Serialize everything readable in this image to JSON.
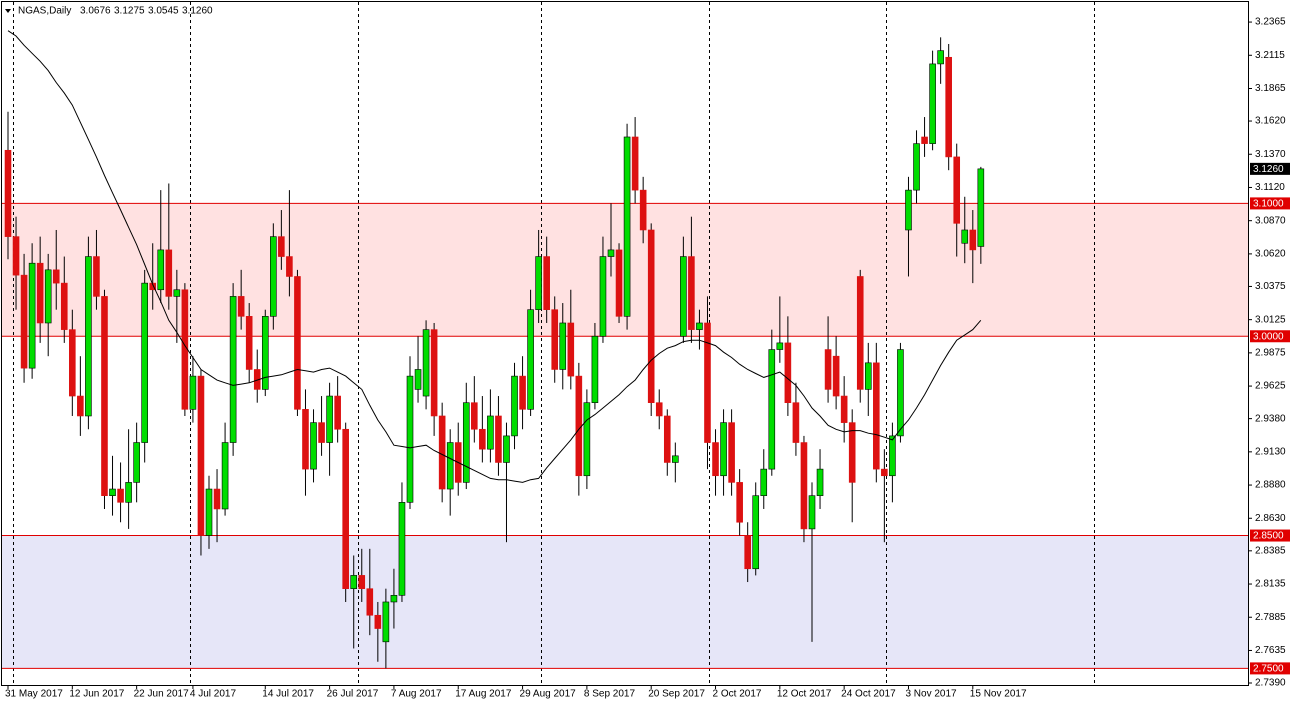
{
  "chart_data": {
    "type": "candlestick",
    "title": "NGAS,Daily",
    "header_values": [
      "3.0676",
      "3.1275",
      "3.0545",
      "3.1260"
    ],
    "up_color": "#00dd00",
    "down_color": "#dd1111",
    "level_color": "#e00000",
    "ma_color": "#000000",
    "ylim": [
      2.7375,
      3.2516
    ],
    "yticks": [
      3.2365,
      3.2115,
      3.1865,
      {
        "value": 3.162,
        "label": "3.1620"
      },
      {
        "value": 3.137,
        "label": "3.1370"
      },
      {
        "value": 3.112,
        "label": "3.1120"
      },
      {
        "value": 3.087,
        "label": "3.0870"
      },
      {
        "value": 3.062,
        "label": "3.0620"
      },
      3.0375,
      3.0125,
      2.9875,
      2.9625,
      {
        "value": 2.938,
        "label": "2.9380"
      },
      {
        "value": 2.913,
        "label": "2.9130"
      },
      {
        "value": 2.888,
        "label": "2.8880"
      },
      {
        "value": 2.863,
        "label": "2.8630"
      },
      2.8385,
      2.8135,
      2.7885,
      2.7635,
      {
        "value": 2.739,
        "label": "2.7390"
      }
    ],
    "xticks": [
      {
        "value": 0,
        "label": "31 May 2017"
      },
      {
        "value": 8,
        "label": "12 Jun 2017"
      },
      {
        "value": 16,
        "label": "22 Jun 2017"
      },
      {
        "value": 23,
        "label": "4 Jul 2017"
      },
      {
        "value": 32,
        "label": "14 Jul 2017"
      },
      {
        "value": 40,
        "label": "26 Jul 2017"
      },
      {
        "value": 48,
        "label": "7 Aug 2017"
      },
      {
        "value": 56,
        "label": "17 Aug 2017"
      },
      {
        "value": 64,
        "label": "29 Aug 2017"
      },
      {
        "value": 72,
        "label": "8 Sep 2017"
      },
      {
        "value": 80,
        "label": "20 Sep 2017"
      },
      {
        "value": 88,
        "label": "2 Oct 2017"
      },
      {
        "value": 96,
        "label": "12 Oct 2017"
      },
      {
        "value": 104,
        "label": "24 Oct 2017"
      },
      {
        "value": 112,
        "label": "3 Nov 2017"
      },
      {
        "value": 120,
        "label": "15 Nov 2017"
      }
    ],
    "levels": [
      {
        "value": 3.1,
        "label": "3.1000"
      },
      {
        "value": 3.0,
        "label": "3.0000"
      },
      {
        "value": 2.85,
        "label": "2.8500"
      },
      {
        "value": 2.75,
        "label": "2.7500"
      }
    ],
    "zones": [
      {
        "range": [
          3.0,
          3.1
        ],
        "color": "#ffe1e1"
      },
      {
        "range": [
          2.75,
          2.85
        ],
        "color": "#e6e6f8"
      }
    ],
    "candles": [
      [
        3.14,
        3.169,
        3.058,
        3.075
      ],
      [
        3.075,
        3.09,
        3.02,
        3.046
      ],
      [
        3.046,
        3.062,
        2.965,
        2.976
      ],
      [
        2.976,
        3.07,
        2.968,
        3.055
      ],
      [
        3.055,
        3.075,
        2.995,
        3.01
      ],
      [
        3.01,
        3.062,
        2.985,
        3.05
      ],
      [
        3.05,
        3.08,
        3.02,
        3.04
      ],
      [
        3.04,
        3.06,
        2.995,
        3.005
      ],
      [
        3.005,
        3.02,
        2.94,
        2.955
      ],
      [
        2.955,
        2.985,
        2.925,
        2.94
      ],
      [
        2.94,
        3.075,
        2.93,
        3.06
      ],
      [
        3.06,
        3.08,
        3.02,
        3.03
      ],
      [
        3.03,
        3.035,
        2.87,
        2.88
      ],
      [
        2.88,
        2.91,
        2.865,
        2.885
      ],
      [
        2.885,
        2.905,
        2.86,
        2.875
      ],
      [
        2.875,
        2.93,
        2.855,
        2.89
      ],
      [
        2.89,
        2.935,
        2.875,
        2.92
      ],
      [
        2.92,
        3.05,
        2.905,
        3.04
      ],
      [
        3.04,
        3.07,
        3.02,
        3.035
      ],
      [
        3.035,
        3.11,
        3.025,
        3.065
      ],
      [
        3.065,
        3.115,
        3.02,
        3.03
      ],
      [
        3.03,
        3.05,
        2.995,
        3.035
      ],
      [
        3.035,
        3.04,
        2.94,
        2.945
      ],
      [
        2.945,
        2.985,
        2.935,
        2.97
      ],
      [
        2.97,
        2.975,
        2.835,
        2.85
      ],
      [
        2.85,
        2.895,
        2.84,
        2.885
      ],
      [
        2.885,
        2.9,
        2.845,
        2.87
      ],
      [
        2.87,
        2.935,
        2.865,
        2.92
      ],
      [
        2.92,
        3.04,
        2.91,
        3.03
      ],
      [
        3.03,
        3.05,
        3.005,
        3.015
      ],
      [
        3.015,
        3.025,
        2.965,
        2.975
      ],
      [
        2.975,
        2.99,
        2.95,
        2.96
      ],
      [
        2.96,
        3.02,
        2.955,
        3.015
      ],
      [
        3.015,
        3.085,
        3.005,
        3.075
      ],
      [
        3.075,
        3.095,
        3.05,
        3.06
      ],
      [
        3.06,
        3.11,
        3.03,
        3.045
      ],
      [
        3.045,
        3.05,
        2.94,
        2.945
      ],
      [
        2.945,
        2.96,
        2.88,
        2.9
      ],
      [
        2.9,
        2.945,
        2.89,
        2.935
      ],
      [
        2.935,
        2.955,
        2.91,
        2.92
      ],
      [
        2.92,
        2.965,
        2.895,
        2.955
      ],
      [
        2.955,
        2.97,
        2.92,
        2.93
      ],
      [
        2.93,
        2.935,
        2.8,
        2.81
      ],
      [
        2.81,
        2.835,
        2.765,
        2.82
      ],
      [
        2.82,
        2.84,
        2.8,
        2.81
      ],
      [
        2.81,
        2.84,
        2.775,
        2.79
      ],
      [
        2.79,
        2.8,
        2.755,
        2.78
      ],
      [
        2.77,
        2.81,
        2.75,
        2.8
      ],
      [
        2.8,
        2.825,
        2.78,
        2.805
      ],
      [
        2.805,
        2.89,
        2.8,
        2.875
      ],
      [
        2.875,
        2.985,
        2.87,
        2.97
      ],
      [
        2.96,
        3.0,
        2.95,
        2.975
      ],
      [
        2.955,
        3.012,
        2.945,
        3.005
      ],
      [
        3.005,
        3.01,
        2.925,
        2.94
      ],
      [
        2.94,
        2.95,
        2.875,
        2.885
      ],
      [
        2.885,
        2.93,
        2.865,
        2.92
      ],
      [
        2.92,
        2.935,
        2.88,
        2.89
      ],
      [
        2.89,
        2.965,
        2.885,
        2.95
      ],
      [
        2.95,
        2.97,
        2.92,
        2.93
      ],
      [
        2.93,
        2.955,
        2.905,
        2.915
      ],
      [
        2.915,
        2.96,
        2.905,
        2.94
      ],
      [
        2.94,
        2.955,
        2.895,
        2.905
      ],
      [
        2.905,
        2.935,
        2.845,
        2.925
      ],
      [
        2.925,
        2.98,
        2.915,
        2.97
      ],
      [
        2.97,
        2.985,
        2.93,
        2.945
      ],
      [
        2.945,
        3.035,
        2.94,
        3.02
      ],
      [
        3.02,
        3.08,
        3.01,
        3.06
      ],
      [
        3.06,
        3.075,
        3.01,
        3.02
      ],
      [
        3.02,
        3.03,
        2.965,
        2.975
      ],
      [
        2.975,
        3.025,
        2.96,
        3.01
      ],
      [
        3.01,
        3.035,
        2.96,
        2.97
      ],
      [
        2.97,
        2.98,
        2.88,
        2.895
      ],
      [
        2.895,
        2.96,
        2.885,
        2.95
      ],
      [
        2.95,
        3.01,
        2.945,
        3.0
      ],
      [
        3.0,
        3.075,
        2.995,
        3.06
      ],
      [
        3.06,
        3.1,
        3.045,
        3.065
      ],
      [
        3.065,
        3.07,
        3.01,
        3.015
      ],
      [
        3.015,
        3.16,
        3.005,
        3.15
      ],
      [
        3.15,
        3.165,
        3.1,
        3.11
      ],
      [
        3.11,
        3.12,
        3.07,
        3.08
      ],
      [
        3.08,
        3.085,
        2.94,
        2.95
      ],
      [
        2.95,
        2.96,
        2.93,
        2.94
      ],
      [
        2.94,
        2.945,
        2.895,
        2.905
      ],
      [
        2.905,
        2.92,
        2.89,
        2.91
      ],
      [
        3.0,
        3.075,
        2.995,
        3.06
      ],
      [
        3.06,
        3.09,
        2.995,
        3.005
      ],
      [
        3.005,
        3.02,
        2.99,
        3.01
      ],
      [
        3.01,
        3.03,
        2.9,
        2.92
      ],
      [
        2.92,
        2.93,
        2.88,
        2.895
      ],
      [
        2.895,
        2.945,
        2.88,
        2.935
      ],
      [
        2.935,
        2.945,
        2.88,
        2.89
      ],
      [
        2.89,
        2.9,
        2.85,
        2.86
      ],
      [
        2.85,
        2.86,
        2.815,
        2.825
      ],
      [
        2.825,
        2.89,
        2.82,
        2.88
      ],
      [
        2.88,
        2.915,
        2.87,
        2.9
      ],
      [
        2.9,
        3.005,
        2.895,
        2.99
      ],
      [
        2.99,
        3.03,
        2.98,
        2.995
      ],
      [
        2.995,
        3.015,
        2.94,
        2.95
      ],
      [
        2.95,
        2.965,
        2.91,
        2.92
      ],
      [
        2.92,
        2.925,
        2.845,
        2.855
      ],
      [
        2.855,
        2.89,
        2.77,
        2.88
      ],
      [
        2.88,
        2.915,
        2.87,
        2.9
      ],
      [
        2.99,
        3.015,
        2.95,
        2.96
      ],
      [
        2.985,
        3.0,
        2.945,
        2.955
      ],
      [
        2.955,
        2.97,
        2.92,
        2.935
      ],
      [
        2.935,
        2.945,
        2.86,
        2.89
      ],
      [
        3.045,
        3.05,
        2.95,
        2.96
      ],
      [
        2.96,
        2.995,
        2.94,
        2.98
      ],
      [
        2.98,
        2.995,
        2.89,
        2.9
      ],
      [
        2.9,
        2.915,
        2.845,
        2.895
      ],
      [
        2.895,
        2.935,
        2.875,
        2.925
      ],
      [
        2.925,
        2.995,
        2.92,
        2.99
      ],
      [
        3.08,
        3.12,
        3.045,
        3.11
      ],
      [
        3.11,
        3.155,
        3.1,
        3.145
      ],
      [
        3.15,
        3.165,
        3.135,
        3.145
      ],
      [
        3.145,
        3.215,
        3.14,
        3.205
      ],
      [
        3.205,
        3.225,
        3.19,
        3.215
      ],
      [
        3.21,
        3.22,
        3.125,
        3.135
      ],
      [
        3.135,
        3.145,
        3.06,
        3.085
      ],
      [
        3.07,
        3.105,
        3.055,
        3.08
      ],
      [
        3.08,
        3.095,
        3.04,
        3.065
      ],
      [
        3.0676,
        3.1275,
        3.0545,
        3.126
      ]
    ],
    "ma": [
      3.23,
      3.226,
      3.219,
      3.213,
      3.207,
      3.2,
      3.191,
      3.183,
      3.174,
      3.161,
      3.148,
      3.135,
      3.121,
      3.108,
      3.095,
      3.082,
      3.069,
      3.054,
      3.039,
      3.026,
      3.012,
      3.003,
      2.993,
      2.984,
      2.975,
      2.971,
      2.967,
      2.965,
      2.963,
      2.964,
      2.965,
      2.967,
      2.969,
      2.97,
      2.971,
      2.973,
      2.975,
      2.974,
      2.973,
      2.975,
      2.976,
      2.973,
      2.97,
      2.965,
      2.96,
      2.948,
      2.937,
      2.928,
      2.918,
      2.917,
      2.916,
      2.917,
      2.918,
      2.914,
      2.911,
      2.908,
      2.905,
      2.902,
      2.899,
      2.896,
      2.893,
      2.892,
      2.892,
      2.891,
      2.89,
      2.892,
      2.893,
      2.901,
      2.908,
      2.915,
      2.922,
      2.93,
      2.937,
      2.941,
      2.946,
      2.951,
      2.956,
      2.962,
      2.967,
      2.975,
      2.982,
      2.987,
      2.991,
      2.993,
      2.996,
      2.997,
      2.997,
      2.995,
      2.993,
      2.988,
      2.984,
      2.979,
      2.975,
      2.972,
      2.969,
      2.971,
      2.973,
      2.968,
      2.963,
      2.955,
      2.946,
      2.94,
      2.933,
      2.93,
      2.928,
      2.929,
      2.929,
      2.927,
      2.926,
      2.924,
      2.922,
      2.93,
      2.937,
      2.946,
      2.956,
      2.967,
      2.978,
      2.988,
      2.997,
      3.001,
      3.005,
      3.012
    ]
  }
}
